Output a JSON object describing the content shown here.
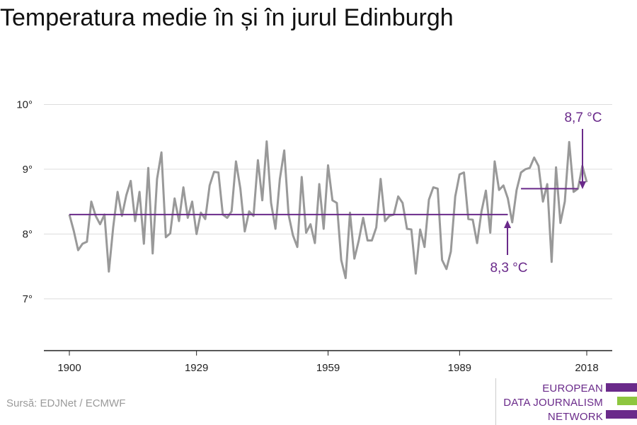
{
  "title": "Temperatura medie în și în jurul Edinburgh",
  "source": "Sursă: EDJNet / ECMWF",
  "logo": {
    "line1": "EUROPEAN",
    "line2": "DATA JOURNALISM",
    "line3": "NETWORK"
  },
  "colors": {
    "series": "#999999",
    "accent": "#6a2a8a",
    "logo_purple": "#6a2a8a",
    "logo_green": "#8dc63f",
    "grid": "#dddddd"
  },
  "chart_data": {
    "type": "line",
    "title": "Temperatura medie în și în jurul Edinburgh",
    "xlabel": "",
    "ylabel": "",
    "xlim": [
      1900,
      2018
    ],
    "ylim": [
      6.2,
      10.3
    ],
    "y_ticks": [
      7,
      8,
      9,
      10
    ],
    "y_tick_labels": [
      "7°",
      "8°",
      "9°",
      "10°"
    ],
    "x_ticks": [
      1900,
      1929,
      1959,
      1989,
      2018
    ],
    "x_tick_labels": [
      "1900",
      "1929",
      "1959",
      "1989",
      "2018"
    ],
    "grid": "horizontal",
    "series": [
      {
        "x": [
          1900,
          1901,
          1902,
          1903,
          1904,
          1905,
          1906,
          1907,
          1908,
          1909,
          1910,
          1911,
          1912,
          1913,
          1914,
          1915,
          1916,
          1917,
          1918,
          1919,
          1920,
          1921,
          1922,
          1923,
          1924,
          1925,
          1926,
          1927,
          1928,
          1929,
          1930,
          1931,
          1932,
          1933,
          1934,
          1935,
          1936,
          1937,
          1938,
          1939,
          1940,
          1941,
          1942,
          1943,
          1944,
          1945,
          1946,
          1947,
          1948,
          1949,
          1950,
          1951,
          1952,
          1953,
          1954,
          1955,
          1956,
          1957,
          1958,
          1959,
          1960,
          1961,
          1962,
          1963,
          1964,
          1965,
          1966,
          1967,
          1968,
          1969,
          1970,
          1971,
          1972,
          1973,
          1974,
          1975,
          1976,
          1977,
          1978,
          1979,
          1980,
          1981,
          1982,
          1983,
          1984,
          1985,
          1986,
          1987,
          1988,
          1989,
          1990,
          1991,
          1992,
          1993,
          1994,
          1995,
          1996,
          1997,
          1998,
          1999,
          2000,
          2001,
          2002,
          2003,
          2004,
          2005,
          2006,
          2007,
          2008,
          2009,
          2010,
          2011,
          2012,
          2013,
          2014,
          2015,
          2016,
          2017,
          2018
        ],
        "values": [
          8.3,
          8.05,
          7.75,
          7.85,
          7.88,
          8.5,
          8.28,
          8.15,
          8.3,
          7.42,
          8.1,
          8.65,
          8.28,
          8.6,
          8.82,
          8.2,
          8.65,
          7.85,
          9.02,
          7.7,
          8.85,
          9.26,
          7.95,
          8.01,
          8.55,
          8.2,
          8.72,
          8.25,
          8.5,
          8.0,
          8.33,
          8.23,
          8.75,
          8.96,
          8.95,
          8.3,
          8.25,
          8.35,
          9.12,
          8.7,
          8.04,
          8.35,
          8.28,
          9.14,
          8.52,
          9.43,
          8.48,
          8.08,
          8.85,
          9.29,
          8.3,
          7.98,
          7.8,
          8.88,
          8.02,
          8.15,
          7.86,
          8.77,
          8.08,
          9.06,
          8.52,
          8.48,
          7.6,
          7.32,
          8.33,
          7.62,
          7.9,
          8.25,
          7.9,
          7.9,
          8.1,
          8.85,
          8.2,
          8.28,
          8.3,
          8.58,
          8.48,
          8.08,
          8.07,
          7.39,
          8.07,
          7.8,
          8.53,
          8.72,
          8.7,
          7.6,
          7.46,
          7.73,
          8.58,
          8.92,
          8.95,
          8.23,
          8.22,
          7.86,
          8.35,
          8.67,
          8.02,
          9.12,
          8.68,
          8.75,
          8.55,
          8.18,
          8.68,
          8.95,
          9.0,
          9.02,
          9.18,
          9.05,
          8.5,
          8.77,
          7.57,
          9.03,
          8.17,
          8.5,
          9.42,
          8.65,
          8.7,
          9.05,
          8.8
        ]
      }
    ],
    "reference_lines": [
      {
        "from": 1900,
        "to": 2000,
        "value": 8.3,
        "label": "8,3 °C"
      },
      {
        "from": 2003,
        "to": 2016,
        "value": 8.7,
        "label": "8,7 °C"
      }
    ]
  }
}
